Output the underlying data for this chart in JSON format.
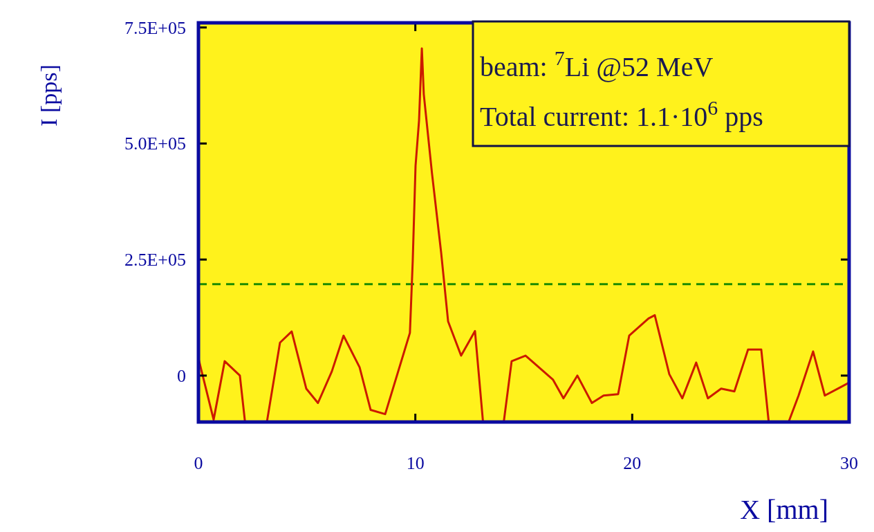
{
  "chart_data": {
    "type": "line",
    "xlabel": "X [mm]",
    "ylabel": "I [pps]",
    "xlim": [
      0,
      30
    ],
    "xticks": [
      0,
      10,
      20,
      30
    ],
    "ylim": [
      -100000,
      760000
    ],
    "yticks": [
      {
        "value": 0,
        "label": "0"
      },
      {
        "value": 250000,
        "label": "2.5E+05"
      },
      {
        "value": 500000,
        "label": "5.0E+05"
      },
      {
        "value": 750000,
        "label": "7.5E+05"
      }
    ],
    "grid": false,
    "marker": "none",
    "line_style": "solid",
    "series": [
      {
        "color": "#cc1a00",
        "x": [
          0,
          0.7,
          1.21,
          1.91,
          2.36,
          2.84,
          3.76,
          4.3,
          4.97,
          5.51,
          6.15,
          6.69,
          7.43,
          7.94,
          8.61,
          9.75,
          9.88,
          10.01,
          10.17,
          10.3,
          10.39,
          10.77,
          11.19,
          11.51,
          12.11,
          12.75,
          13.29,
          13.83,
          14.44,
          15.08,
          16.35,
          16.83,
          17.47,
          18.14,
          18.68,
          19.35,
          19.86,
          20.75,
          21.04,
          21.71,
          22.31,
          22.95,
          23.49,
          24.1,
          24.71,
          25.34,
          25.95,
          26.49,
          27.67,
          28.34,
          28.88,
          29.61,
          30
        ],
        "values": [
          37000,
          -95000,
          31000,
          0,
          null,
          null,
          71000,
          95000,
          -28000,
          -59000,
          9000,
          86000,
          18000,
          -74000,
          -83000,
          92000,
          247000,
          452000,
          549000,
          705000,
          606000,
          435000,
          265000,
          117000,
          43000,
          96000,
          null,
          null,
          31000,
          43000,
          -9000,
          -49000,
          0,
          -59000,
          -43000,
          -40000,
          86000,
          123000,
          130000,
          3000,
          -49000,
          28000,
          -49000,
          -28000,
          -34000,
          56000,
          56000,
          null,
          -43000,
          52000,
          -43000,
          -25000,
          -15000
        ]
      }
    ],
    "ref_lines": [
      {
        "axis": "y",
        "value": 197000,
        "color": "#1a8a00",
        "line_style": "dashed"
      }
    ],
    "annotations": [
      "beam: $^{7}$Li @52 MeV",
      "Total current: 1.1·10$^{6}$ pps"
    ]
  }
}
